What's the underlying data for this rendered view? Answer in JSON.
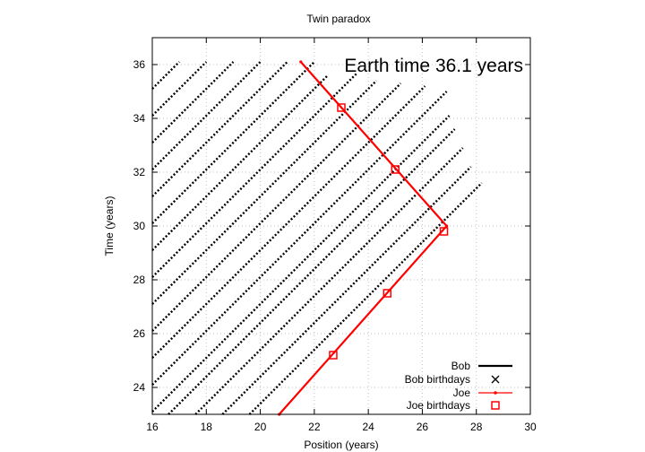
{
  "chart_data": {
    "type": "line",
    "title": "Twin paradox",
    "xlabel": "Position (years)",
    "ylabel": "Time (years)",
    "xlim": [
      16,
      30
    ],
    "ylim": [
      23,
      37
    ],
    "xticks": [
      16,
      18,
      20,
      22,
      24,
      26,
      28,
      30
    ],
    "yticks": [
      24,
      26,
      28,
      30,
      32,
      34,
      36
    ],
    "grid": true,
    "annotation": "Earth time 36.1 years",
    "legend_position": "bottom-right",
    "colors": {
      "bob": "#000000",
      "joe": "#ff0000",
      "grid": "#c0c0c0"
    },
    "series": [
      {
        "name": "Bob",
        "style": "dotted-lines",
        "lines": [
          [
            [
              16.0,
              35.1
            ],
            [
              17.0,
              36.1
            ]
          ],
          [
            [
              16.0,
              34.1
            ],
            [
              18.0,
              36.1
            ]
          ],
          [
            [
              16.0,
              33.1
            ],
            [
              19.0,
              36.1
            ]
          ],
          [
            [
              16.0,
              32.1
            ],
            [
              20.0,
              36.1
            ]
          ],
          [
            [
              16.0,
              31.1
            ],
            [
              21.0,
              36.1
            ]
          ],
          [
            [
              16.0,
              30.1
            ],
            [
              22.0,
              36.1
            ]
          ],
          [
            [
              16.0,
              29.1
            ],
            [
              22.5,
              35.6
            ]
          ],
          [
            [
              16.0,
              28.1
            ],
            [
              23.6,
              35.7
            ]
          ],
          [
            [
              16.0,
              27.1
            ],
            [
              24.3,
              35.4
            ]
          ],
          [
            [
              16.0,
              26.1
            ],
            [
              25.2,
              35.3
            ]
          ],
          [
            [
              16.0,
              25.1
            ],
            [
              26.1,
              35.2
            ]
          ],
          [
            [
              16.0,
              24.1
            ],
            [
              26.9,
              35.0
            ]
          ],
          [
            [
              16.0,
              23.1
            ],
            [
              27.0,
              34.1
            ]
          ],
          [
            [
              16.6,
              23.0
            ],
            [
              27.2,
              33.6
            ]
          ],
          [
            [
              17.6,
              23.0
            ],
            [
              27.5,
              32.9
            ]
          ],
          [
            [
              18.6,
              23.0
            ],
            [
              27.8,
              32.2
            ]
          ],
          [
            [
              19.6,
              23.0
            ],
            [
              28.2,
              31.6
            ]
          ]
        ]
      },
      {
        "name": "Bob birthdays",
        "marker": "x",
        "points": []
      },
      {
        "name": "Joe",
        "x": [
          20.7,
          26.9,
          21.5
        ],
        "y": [
          23.0,
          30.0,
          36.1
        ]
      },
      {
        "name": "Joe birthdays",
        "marker": "square",
        "x": [
          22.7,
          24.7,
          26.8,
          25.0,
          23.0
        ],
        "y": [
          25.2,
          27.5,
          29.8,
          32.1,
          34.4
        ]
      }
    ],
    "legend": [
      {
        "label": "Bob",
        "symbol": "line-dots",
        "color": "#000000"
      },
      {
        "label": "Bob birthdays",
        "symbol": "x",
        "color": "#000000"
      },
      {
        "label": "Joe",
        "symbol": "line-dot",
        "color": "#ff0000"
      },
      {
        "label": "Joe birthdays",
        "symbol": "square",
        "color": "#ff0000"
      }
    ]
  }
}
